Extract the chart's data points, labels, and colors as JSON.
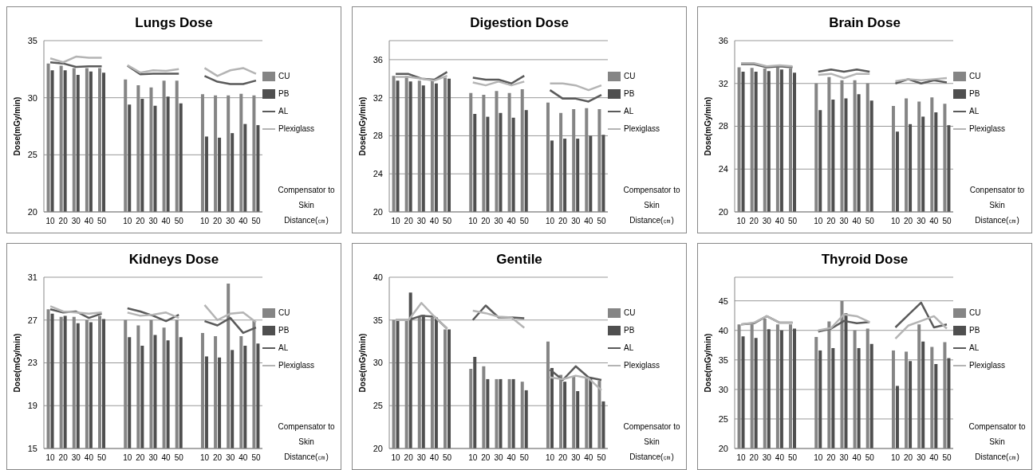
{
  "chart_data": [
    {
      "type": "bar",
      "title": "Lungs Dose",
      "ylabel": "Dose(mGy/min)",
      "xlabel": "Compensator to Skin Distance(㎝)",
      "categories": [
        "10",
        "20",
        "30",
        "40",
        "50",
        null,
        "10",
        "20",
        "30",
        "40",
        "50",
        null,
        "10",
        "20",
        "30",
        "40",
        "50"
      ],
      "ylim": [
        20,
        35
      ],
      "yticks": [
        20,
        25,
        30,
        35
      ],
      "grid": "y",
      "legend": "right",
      "series": [
        {
          "name": "CU",
          "type": "bar",
          "color": "#858585",
          "values": [
            33.0,
            32.8,
            32.6,
            32.6,
            32.6,
            null,
            31.6,
            31.1,
            30.9,
            31.5,
            31.5,
            null,
            30.3,
            30.2,
            30.2,
            30.35,
            30.2
          ]
        },
        {
          "name": "PB",
          "type": "bar",
          "color": "#4f4f4f",
          "values": [
            32.4,
            32.4,
            32.0,
            32.3,
            32.2,
            null,
            29.4,
            29.9,
            29.3,
            30.1,
            29.5,
            null,
            26.6,
            26.5,
            26.9,
            27.7,
            27.6
          ]
        },
        {
          "name": "AL",
          "type": "line",
          "color": "#5a5a5a",
          "values": [
            33.1,
            33.0,
            32.7,
            32.75,
            32.75,
            null,
            32.8,
            32.05,
            32.1,
            32.1,
            32.1,
            null,
            31.9,
            31.4,
            31.2,
            31.2,
            31.5
          ]
        },
        {
          "name": "Plexiglass",
          "type": "line",
          "color": "#b4b4b4",
          "values": [
            33.45,
            33.1,
            33.6,
            33.5,
            33.5,
            null,
            32.85,
            32.2,
            32.4,
            32.35,
            32.5,
            null,
            32.6,
            31.9,
            32.4,
            32.6,
            32.1
          ]
        }
      ]
    },
    {
      "type": "bar",
      "title": "Digestion Dose",
      "ylabel": "Dose(mGy/min)",
      "xlabel": "Compensator to Skin Distance(㎝)",
      "categories": [
        "10",
        "20",
        "30",
        "40",
        "50",
        null,
        "10",
        "20",
        "30",
        "40",
        "50",
        null,
        "10",
        "20",
        "30",
        "40",
        "50"
      ],
      "ylim": [
        20,
        38
      ],
      "yticks": [
        20,
        24,
        28,
        32,
        36
      ],
      "grid": "y",
      "legend": "right",
      "series": [
        {
          "name": "CU",
          "type": "bar",
          "color": "#858585",
          "values": [
            34.3,
            34.3,
            33.8,
            33.8,
            34.1,
            null,
            32.5,
            32.3,
            32.7,
            32.5,
            32.9,
            null,
            31.5,
            30.4,
            30.8,
            30.9,
            30.8
          ]
        },
        {
          "name": "PB",
          "type": "bar",
          "color": "#4f4f4f",
          "values": [
            33.8,
            33.7,
            33.3,
            33.5,
            34.0,
            null,
            30.3,
            30.0,
            30.4,
            29.9,
            30.7,
            null,
            27.5,
            27.7,
            27.7,
            28.0,
            28.1
          ]
        },
        {
          "name": "AL",
          "type": "line",
          "color": "#5a5a5a",
          "values": [
            34.5,
            34.5,
            34.0,
            33.9,
            34.7,
            null,
            34.1,
            33.9,
            33.9,
            33.5,
            34.3,
            null,
            32.8,
            31.9,
            31.9,
            31.6,
            32.3
          ]
        },
        {
          "name": "Plexiglass",
          "type": "line",
          "color": "#b4b4b4",
          "values": [
            34.2,
            34.2,
            34.0,
            33.8,
            34.3,
            null,
            33.6,
            33.3,
            33.7,
            33.3,
            33.7,
            null,
            33.5,
            33.5,
            33.3,
            32.8,
            33.3
          ]
        }
      ]
    },
    {
      "type": "bar",
      "title": "Brain Dose",
      "ylabel": "Dose(mGy/min)",
      "xlabel": "Conpensator to Skin Distance(㎝)",
      "categories": [
        "10",
        "20",
        "30",
        "40",
        "50",
        null,
        "10",
        "20",
        "30",
        "40",
        "50",
        null,
        "10",
        "20",
        "30",
        "40",
        "50"
      ],
      "ylim": [
        20,
        36
      ],
      "yticks": [
        20,
        24,
        28,
        32,
        36
      ],
      "grid": "y",
      "legend": "right",
      "series": [
        {
          "name": "CU",
          "type": "bar",
          "color": "#858585",
          "values": [
            33.5,
            33.45,
            33.4,
            33.5,
            33.4,
            null,
            32.0,
            32.6,
            32.3,
            32.3,
            32.0,
            null,
            29.9,
            30.6,
            30.3,
            30.7,
            30.1
          ]
        },
        {
          "name": "PB",
          "type": "bar",
          "color": "#4f4f4f",
          "values": [
            33.1,
            33.1,
            33.15,
            33.3,
            33.0,
            null,
            29.5,
            30.5,
            30.6,
            31.0,
            30.4,
            null,
            27.5,
            28.2,
            28.9,
            29.3,
            28.1
          ]
        },
        {
          "name": "AL",
          "type": "line",
          "color": "#5a5a5a",
          "values": [
            33.8,
            33.8,
            33.5,
            33.6,
            33.5,
            null,
            33.1,
            33.3,
            33.1,
            33.3,
            33.1,
            null,
            32.0,
            32.4,
            32.0,
            32.3,
            32.1
          ]
        },
        {
          "name": "Plexiglass",
          "type": "line",
          "color": "#b4b4b4",
          "values": [
            33.9,
            33.9,
            33.6,
            33.7,
            33.6,
            null,
            32.8,
            32.9,
            32.5,
            32.9,
            32.9,
            null,
            32.2,
            32.4,
            32.3,
            32.4,
            32.5
          ]
        }
      ]
    },
    {
      "type": "bar",
      "title": "Kidneys Dose",
      "ylabel": "Dose(mGy/min)",
      "xlabel": "Compensator to Skin Distance(㎝)",
      "categories": [
        "10",
        "20",
        "30",
        "40",
        "50",
        null,
        "10",
        "20",
        "30",
        "40",
        "50",
        null,
        "10",
        "20",
        "30",
        "40",
        "50"
      ],
      "ylim": [
        15,
        31
      ],
      "yticks": [
        15,
        19,
        23,
        27,
        31
      ],
      "grid": "y",
      "legend": "right",
      "series": [
        {
          "name": "CU",
          "type": "bar",
          "color": "#858585",
          "values": [
            28.0,
            27.3,
            27.3,
            27.0,
            27.4,
            null,
            27.0,
            26.5,
            27.0,
            26.3,
            27.0,
            null,
            25.8,
            25.5,
            30.4,
            25.5,
            26.9
          ]
        },
        {
          "name": "PB",
          "type": "bar",
          "color": "#4f4f4f",
          "values": [
            27.6,
            27.4,
            26.7,
            26.8,
            27.1,
            null,
            25.4,
            24.6,
            25.6,
            25.1,
            25.4,
            null,
            23.6,
            23.5,
            24.2,
            24.6,
            24.8
          ]
        },
        {
          "name": "AL",
          "type": "line",
          "color": "#5a5a5a",
          "values": [
            28.0,
            27.7,
            27.8,
            27.2,
            27.6,
            null,
            28.1,
            27.8,
            27.4,
            26.9,
            27.5,
            null,
            26.9,
            26.5,
            27.2,
            25.8,
            26.3
          ]
        },
        {
          "name": "Plexiglass",
          "type": "line",
          "color": "#b4b4b4",
          "values": [
            28.3,
            27.8,
            27.7,
            27.6,
            27.7,
            null,
            27.7,
            27.4,
            27.5,
            27.7,
            27.2,
            null,
            28.4,
            27.0,
            27.6,
            27.7,
            26.8
          ]
        }
      ]
    },
    {
      "type": "bar",
      "title": "Gentile",
      "ylabel": "Dose(mGy/min)",
      "xlabel": "Compensator to Skin Distance(㎝)",
      "categories": [
        "10",
        "20",
        "30",
        "40",
        "50",
        null,
        "10",
        "20",
        "30",
        "40",
        "50",
        null,
        "10",
        "20",
        "30",
        "40",
        "50"
      ],
      "ylim": [
        20,
        40
      ],
      "yticks": [
        20,
        25,
        30,
        35,
        40
      ],
      "grid": "y",
      "legend": "right",
      "series": [
        {
          "name": "CU",
          "type": "bar",
          "color": "#858585",
          "values": [
            35.0,
            35.0,
            35.4,
            35.3,
            33.9,
            null,
            29.3,
            29.6,
            28.1,
            28.1,
            27.8,
            null,
            32.5,
            28.6,
            28.4,
            28.3,
            27.9
          ]
        },
        {
          "name": "PB",
          "type": "bar",
          "color": "#4f4f4f",
          "values": [
            34.9,
            38.2,
            35.6,
            35.3,
            33.9,
            null,
            30.7,
            28.1,
            28.1,
            28.1,
            26.8,
            null,
            29.4,
            27.8,
            26.7,
            28.3,
            25.5
          ]
        },
        {
          "name": "AL",
          "type": "line",
          "color": "#5a5a5a",
          "values": [
            35.0,
            35.0,
            35.5,
            35.4,
            34.0,
            null,
            35.0,
            36.7,
            35.3,
            35.3,
            35.2,
            null,
            29.2,
            28.0,
            29.6,
            28.3,
            28.0
          ]
        },
        {
          "name": "Plexiglass",
          "type": "line",
          "color": "#b4b4b4",
          "values": [
            35.0,
            35.0,
            37.0,
            35.4,
            34.0,
            null,
            36.1,
            35.8,
            35.4,
            35.3,
            34.1,
            null,
            28.3,
            28.1,
            28.5,
            28.2,
            26.8
          ]
        }
      ]
    },
    {
      "type": "bar",
      "title": "Thyroid Dose",
      "ylabel": "Dose(mGy/min)",
      "xlabel": "Compensator to Skin Distance(㎝)",
      "categories": [
        "10",
        "20",
        "30",
        "40",
        "50",
        null,
        "10",
        "20",
        "30",
        "40",
        "50",
        null,
        "10",
        "20",
        "30",
        "40",
        "50"
      ],
      "ylim": [
        20,
        49
      ],
      "yticks": [
        20,
        25,
        30,
        35,
        40,
        45
      ],
      "grid": "y",
      "legend": "right",
      "series": [
        {
          "name": "CU",
          "type": "bar",
          "color": "#858585",
          "values": [
            41.0,
            41.0,
            42.0,
            41.0,
            41.0,
            null,
            38.9,
            41.5,
            45.0,
            40.0,
            40.3,
            null,
            36.6,
            36.4,
            41.0,
            37.2,
            38.0
          ]
        },
        {
          "name": "PB",
          "type": "bar",
          "color": "#4f4f4f",
          "values": [
            39.0,
            38.7,
            40.2,
            40.0,
            40.3,
            null,
            36.6,
            37.0,
            42.9,
            37.0,
            37.7,
            null,
            30.6,
            34.8,
            38.1,
            34.3,
            35.3
          ]
        },
        {
          "name": "AL",
          "type": "line",
          "color": "#5a5a5a",
          "values": [
            41.0,
            41.2,
            42.4,
            41.3,
            41.3,
            null,
            39.8,
            40.3,
            41.6,
            41.2,
            41.4,
            null,
            40.5,
            42.6,
            44.7,
            40.5,
            41.0
          ]
        },
        {
          "name": "Plexiglass",
          "type": "line",
          "color": "#b4b4b4",
          "values": [
            41.0,
            41.3,
            42.4,
            41.3,
            41.3,
            null,
            40.0,
            40.4,
            42.7,
            42.4,
            41.4,
            null,
            38.6,
            40.8,
            41.6,
            42.4,
            40.3
          ]
        }
      ]
    }
  ]
}
